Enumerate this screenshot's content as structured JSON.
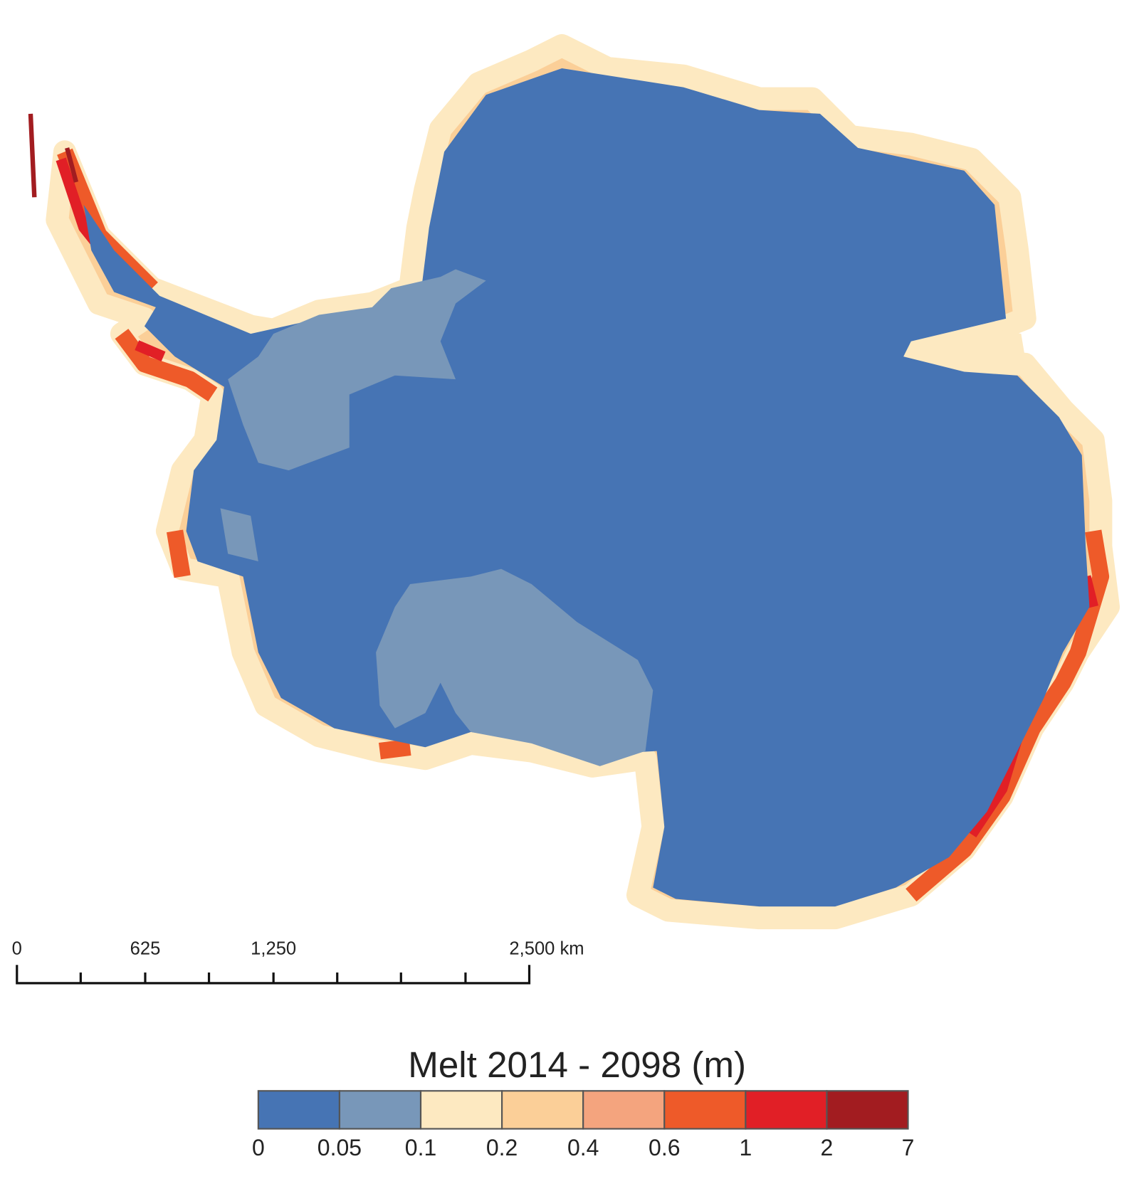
{
  "map": {
    "scale_bar": {
      "labels": [
        "0",
        "625",
        "1,250",
        "2,500 km"
      ]
    },
    "legend": {
      "title": "Melt 2014 - 2098 (m)",
      "breaks": [
        0,
        0.05,
        0.1,
        0.2,
        0.4,
        0.6,
        1,
        2,
        7
      ],
      "colors": [
        "#4674b4",
        "#7897b9",
        "#fde9c1",
        "#fbcf98",
        "#f4a47e",
        "#ee5a29",
        "#e11f26",
        "#a21c20"
      ]
    }
  }
}
